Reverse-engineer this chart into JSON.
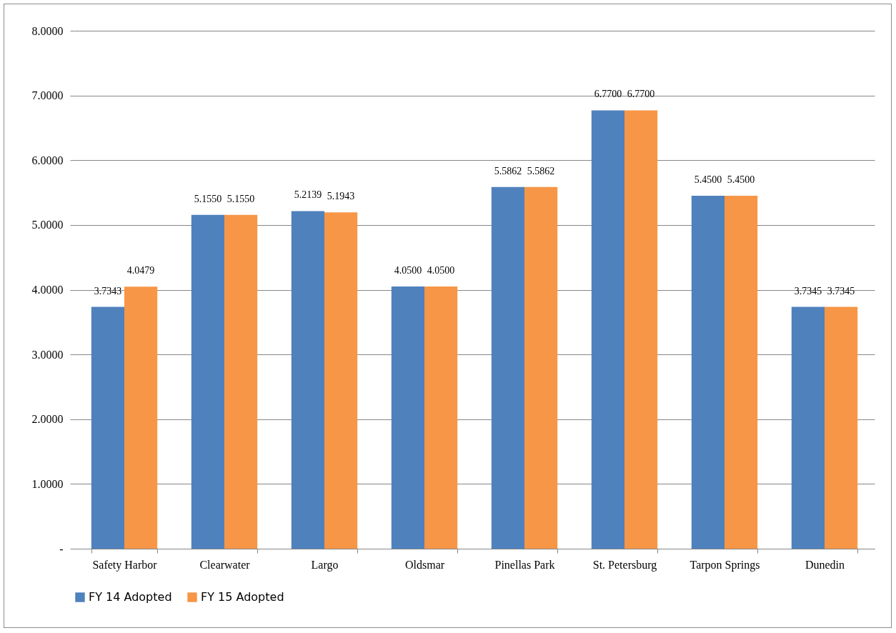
{
  "chart_data": {
    "type": "bar",
    "categories": [
      "Safety Harbor",
      "Clearwater",
      "Largo",
      "Oldsmar",
      "Pinellas Park",
      "St. Petersburg",
      "Tarpon Springs",
      "Dunedin"
    ],
    "series": [
      {
        "name": "FY 14 Adopted",
        "color": "#4f81bd",
        "values": [
          3.7343,
          5.155,
          5.2139,
          4.05,
          5.5862,
          6.77,
          5.45,
          3.7345
        ],
        "value_labels": [
          "3.7343",
          "5.1550",
          "5.2139",
          "4.0500",
          "5.5862",
          "6.7700",
          "5.4500",
          "3.7345"
        ]
      },
      {
        "name": "FY 15 Adopted",
        "color": "#f79646",
        "values": [
          4.0479,
          5.155,
          5.1943,
          4.05,
          5.5862,
          6.77,
          5.45,
          3.7345
        ],
        "value_labels": [
          "4.0479",
          "5.1550",
          "5.1943",
          "4.0500",
          "5.5862",
          "6.7700",
          "5.4500",
          "3.7345"
        ]
      }
    ],
    "ylim": [
      0,
      8
    ],
    "yticks": [
      {
        "value": 0,
        "label": "-"
      },
      {
        "value": 1,
        "label": "1.0000"
      },
      {
        "value": 2,
        "label": "2.0000"
      },
      {
        "value": 3,
        "label": "3.0000"
      },
      {
        "value": 4,
        "label": "4.0000"
      },
      {
        "value": 5,
        "label": "5.0000"
      },
      {
        "value": 6,
        "label": "6.0000"
      },
      {
        "value": 7,
        "label": "7.0000"
      },
      {
        "value": 8,
        "label": "8.0000"
      }
    ],
    "grid": "y",
    "legend": "bottom"
  }
}
